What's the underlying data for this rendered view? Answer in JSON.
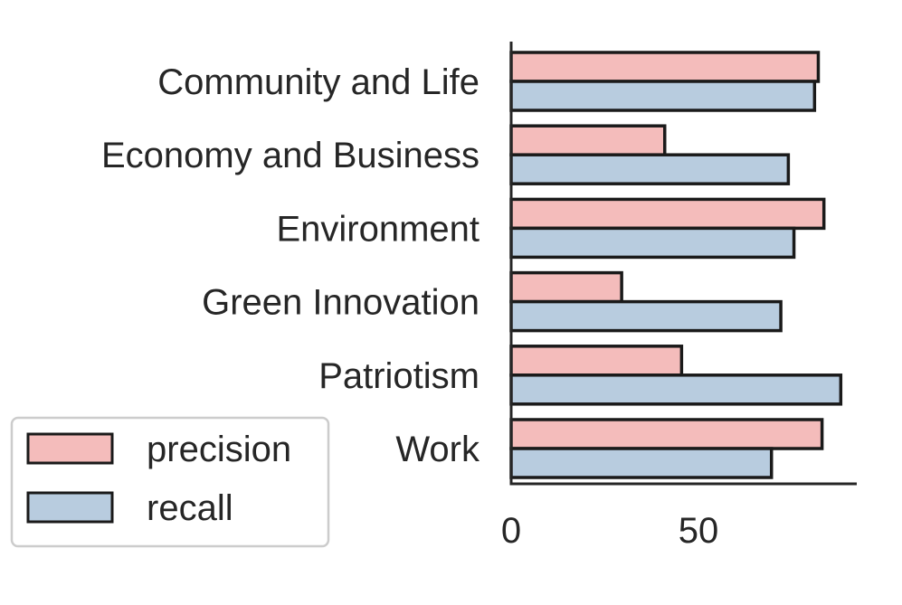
{
  "chart_data": {
    "type": "bar",
    "orientation": "horizontal",
    "categories": [
      "Community and Life",
      "Economy and Business",
      "Environment",
      "Green Innovation",
      "Patriotism",
      "Work"
    ],
    "series": [
      {
        "name": "precision",
        "values": [
          82,
          41,
          83.5,
          29.5,
          45.5,
          83
        ],
        "color": "#f4bcbb"
      },
      {
        "name": "recall",
        "values": [
          81,
          74,
          75.5,
          72,
          88,
          69.5
        ],
        "color": "#b8ccdf"
      }
    ],
    "xticks": [
      "0",
      "50"
    ],
    "xlim": [
      0,
      92
    ],
    "title": "",
    "xlabel": "",
    "ylabel": "",
    "grid": false,
    "legend": "bottom-left",
    "edge_color": "#1a1a1a"
  }
}
